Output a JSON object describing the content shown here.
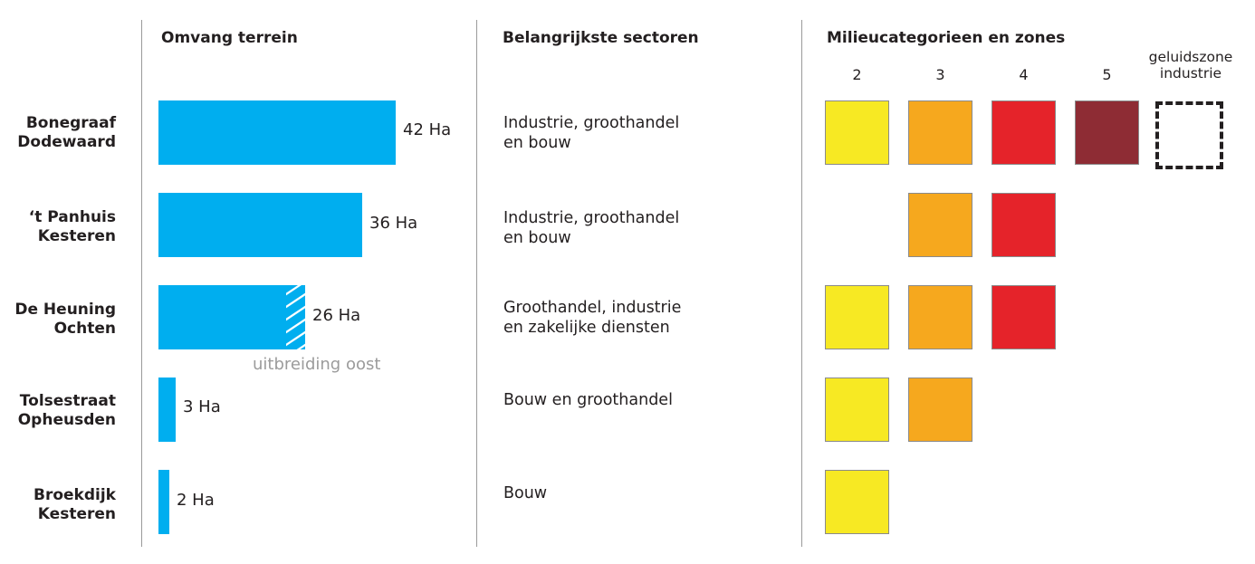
{
  "headers": {
    "terrain": "Omvang terrein",
    "sectors": "Belangrijkste sectoren",
    "categories": "Milieucategorieen en zones"
  },
  "category_columns": [
    {
      "label": "2",
      "color": "#f7e923"
    },
    {
      "label": "3",
      "color": "#f6a81e"
    },
    {
      "label": "4",
      "color": "#e5232a"
    },
    {
      "label": "5",
      "color": "#8e2c34"
    },
    {
      "label_line1": "geluidszone",
      "label_line2": "industrie",
      "style": "dashed"
    }
  ],
  "bar_color": "#00aeef",
  "chart_data": {
    "type": "bar",
    "orientation": "horizontal",
    "unit": "Ha",
    "categories": [
      "Bonegraaf Dodewaard",
      "'t Panhuis Kesteren",
      "De Heuning Ochten",
      "Tolsestraat Opheusden",
      "Broekdijk Kesteren"
    ],
    "values": [
      42,
      36,
      26,
      3,
      2
    ],
    "value_labels": [
      "42 Ha",
      "36 Ha",
      "26 Ha",
      "3 Ha",
      "2 Ha"
    ],
    "annotations": [
      {
        "row": 2,
        "text": "uitbreiding oost",
        "hatched_share": 0.13
      }
    ]
  },
  "rows": [
    {
      "name_line1": "Bonegraaf",
      "name_line2": "Dodewaard",
      "sector_line1": "Industrie, groothandel",
      "sector_line2": "en bouw",
      "categories": [
        "2",
        "3",
        "4",
        "5",
        "geluidszone industrie"
      ]
    },
    {
      "name_line1": "‘t Panhuis",
      "name_line2": "Kesteren",
      "sector_line1": "Industrie, groothandel",
      "sector_line2": "en bouw",
      "categories": [
        "3",
        "4"
      ]
    },
    {
      "name_line1": "De Heuning",
      "name_line2": "Ochten",
      "sector_line1": "Groothandel, industrie",
      "sector_line2": "en zakelijke diensten",
      "categories": [
        "2",
        "3",
        "4"
      ]
    },
    {
      "name_line1": "Tolsestraat",
      "name_line2": "Opheusden",
      "sector_line1": "Bouw en groothandel",
      "sector_line2": "",
      "categories": [
        "2",
        "3"
      ]
    },
    {
      "name_line1": "Broekdijk",
      "name_line2": "Kesteren",
      "sector_line1": "Bouw",
      "sector_line2": "",
      "categories": [
        "2"
      ]
    }
  ]
}
